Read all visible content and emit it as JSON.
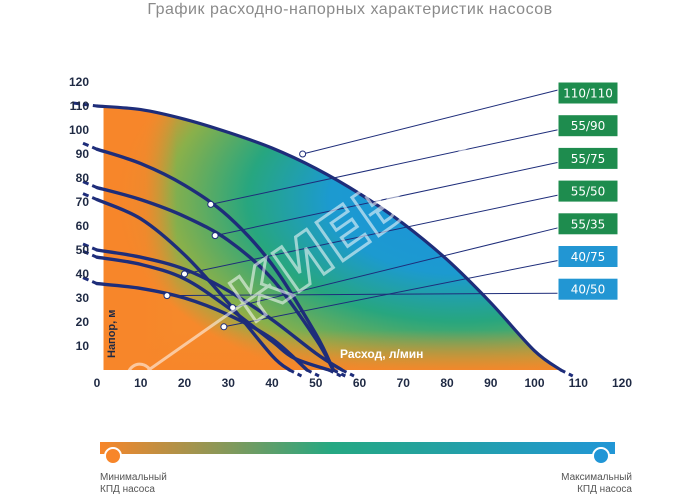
{
  "title": "График расходно-напорных характеристик насосов",
  "watermark": "КИЕВ",
  "colors": {
    "low_efficiency": "#f7862a",
    "mid_efficiency": "#25a882",
    "high_efficiency": "#2196d6",
    "curve": "#1e2d7a",
    "badge_green": "#1e8c4e",
    "badge_blue": "#2296d3"
  },
  "chart_data": {
    "type": "line",
    "title": "График расходно-напорных характеристик насосов",
    "xlabel": "Расход, л/мин",
    "ylabel": "Напор, м",
    "xlim": [
      0,
      120
    ],
    "ylim": [
      0,
      120
    ],
    "x_ticks": [
      "0",
      "10",
      "20",
      "30",
      "40",
      "50",
      "60",
      "70",
      "80",
      "90",
      "100",
      "110",
      "120"
    ],
    "y_ticks": [
      "10",
      "20",
      "30",
      "40",
      "50",
      "60",
      "70",
      "80",
      "90",
      "100",
      "110",
      "120"
    ],
    "grid": false,
    "legend_position": "right",
    "series": [
      {
        "name": "110/110",
        "badge": "green",
        "x": [
          0,
          10,
          20,
          30,
          40,
          50,
          60,
          70,
          80,
          90,
          100,
          106
        ],
        "y": [
          110,
          108.5,
          104.5,
          99,
          92.5,
          84,
          73.5,
          61,
          46,
          28,
          8,
          0
        ],
        "marker": [
          47,
          90
        ]
      },
      {
        "name": "55/90",
        "badge": "green",
        "x": [
          0,
          10,
          20,
          30,
          40,
          50,
          54
        ],
        "y": [
          92,
          86,
          77,
          64,
          44,
          15,
          0
        ],
        "marker": [
          26,
          69
        ]
      },
      {
        "name": "55/75",
        "badge": "green",
        "x": [
          0,
          10,
          20,
          30,
          40,
          50,
          54
        ],
        "y": [
          76,
          71,
          64,
          54,
          38,
          13,
          0
        ],
        "marker": [
          27,
          56
        ]
      },
      {
        "name": "55/50",
        "badge": "green",
        "x": [
          0,
          10,
          20,
          30,
          40,
          50,
          56
        ],
        "y": [
          50,
          47,
          42,
          33,
          21,
          7,
          0
        ],
        "marker": [
          20,
          40
        ]
      },
      {
        "name": "55/35",
        "badge": "green",
        "x": [
          0,
          10,
          20,
          30,
          40,
          45,
          53
        ],
        "y": [
          47,
          44,
          38,
          26,
          12,
          5,
          0
        ],
        "marker": [
          31,
          26
        ]
      },
      {
        "name": "40/75",
        "badge": "blue",
        "x": [
          0,
          10,
          20,
          30,
          40,
          44
        ],
        "y": [
          71,
          63,
          48,
          28,
          6,
          0
        ],
        "marker": [
          29,
          18
        ]
      },
      {
        "name": "40/50",
        "badge": "blue",
        "x": [
          0,
          10,
          20,
          30,
          40,
          48
        ],
        "y": [
          36,
          34,
          30,
          23,
          13,
          0
        ],
        "marker": [
          16,
          31
        ]
      }
    ]
  },
  "efficiency_scale": {
    "min_label_line1": "Минимальный",
    "min_label_line2": "КПД насоса",
    "max_label_line1": "Максимальный",
    "max_label_line2": "КПД насоса"
  }
}
